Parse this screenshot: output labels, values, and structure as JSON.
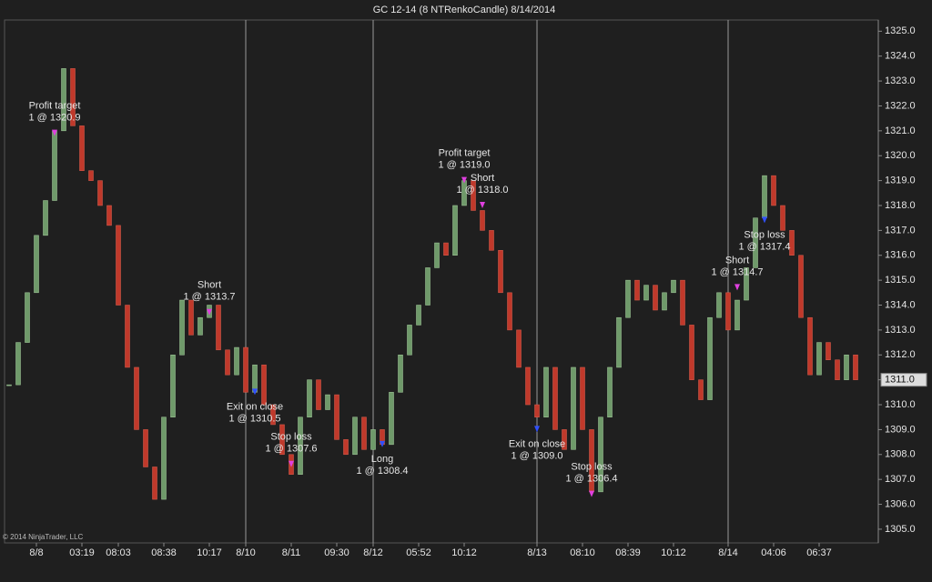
{
  "chart_data": {
    "type": "renko",
    "title": "GC 12-14 (8 NTRenkoCandle)  8/14/2014",
    "copyright": "© 2014 NinjaTrader, LLC",
    "last_price_label": "1311.0",
    "up_color": "#6f9a6a",
    "down_color": "#c0392b",
    "ylim": [
      1304.45,
      1325.45
    ],
    "yticks": [
      {
        "value": 1305,
        "label": "1305.0"
      },
      {
        "value": 1306,
        "label": "1306.0"
      },
      {
        "value": 1307,
        "label": "1307.0"
      },
      {
        "value": 1308,
        "label": "1308.0"
      },
      {
        "value": 1309,
        "label": "1309.0"
      },
      {
        "value": 1310,
        "label": "1310.0"
      },
      {
        "value": 1311,
        "label": "1311.0"
      },
      {
        "value": 1312,
        "label": "1312.0"
      },
      {
        "value": 1313,
        "label": "1313.0"
      },
      {
        "value": 1314,
        "label": "1314.0"
      },
      {
        "value": 1315,
        "label": "1315.0"
      },
      {
        "value": 1316,
        "label": "1316.0"
      },
      {
        "value": 1317,
        "label": "1317.0"
      },
      {
        "value": 1318,
        "label": "1318.0"
      },
      {
        "value": 1319,
        "label": "1319.0"
      },
      {
        "value": 1320,
        "label": "1320.0"
      },
      {
        "value": 1321,
        "label": "1321.0"
      },
      {
        "value": 1322,
        "label": "1322.0"
      },
      {
        "value": 1323,
        "label": "1323.0"
      },
      {
        "value": 1324,
        "label": "1324.0"
      },
      {
        "value": 1325,
        "label": "1325.0"
      }
    ],
    "categories": [
      null,
      null,
      null,
      "8/8",
      null,
      null,
      null,
      null,
      "03:19",
      null,
      null,
      null,
      "08:03",
      null,
      null,
      null,
      null,
      "08:38",
      null,
      null,
      null,
      null,
      "10:17",
      null,
      null,
      null,
      "8/10",
      null,
      null,
      null,
      null,
      "8/11",
      null,
      null,
      null,
      null,
      "09:30",
      null,
      null,
      null,
      "8/12",
      null,
      null,
      null,
      null,
      "05:52",
      null,
      null,
      null,
      null,
      "10:12",
      null,
      null,
      null,
      null,
      null,
      null,
      null,
      "8/13",
      null,
      null,
      null,
      null,
      "08:10",
      null,
      null,
      null,
      null,
      "08:39",
      null,
      null,
      null,
      null,
      "10:12",
      null,
      null,
      null,
      null,
      null,
      "8/14",
      null,
      null,
      null,
      null,
      "04:06",
      null,
      null,
      null,
      null,
      "06:37",
      null,
      null,
      null,
      null
    ],
    "session_breaks": [
      26,
      40,
      58,
      79
    ],
    "closes": [
      1310.8,
      1312.5,
      1314.5,
      1316.8,
      1318.2,
      1321.0,
      1323.5,
      1321.2,
      1319.4,
      1319.0,
      1318.0,
      1317.2,
      1314.0,
      1311.5,
      1309.0,
      1307.5,
      1306.2,
      1309.5,
      1312.0,
      1314.2,
      1312.8,
      1313.5,
      1314.0,
      1312.2,
      1311.2,
      1312.3,
      1310.5,
      1311.6,
      1310.0,
      1309.2,
      1308.0,
      1307.2,
      1309.5,
      1311.0,
      1309.8,
      1310.4,
      1308.6,
      1308.0,
      1309.5,
      1308.2,
      1309.0,
      1308.4,
      1310.5,
      1312.0,
      1313.2,
      1314.0,
      1315.5,
      1316.5,
      1316.0,
      1318.0,
      1319.0,
      1317.8,
      1317.0,
      1316.2,
      1314.5,
      1313.0,
      1311.5,
      1310.0,
      1309.5,
      1311.5,
      1309.0,
      1308.2,
      1311.5,
      1309.0,
      1306.5,
      1309.5,
      1311.5,
      1313.5,
      1315.0,
      1314.2,
      1314.8,
      1313.8,
      1314.5,
      1315.0,
      1313.2,
      1311.0,
      1310.2,
      1313.5,
      1314.5,
      1313.0,
      1314.2,
      1315.5,
      1317.5,
      1319.2,
      1318.0,
      1317.0,
      1316.0,
      1313.5,
      1311.2,
      1312.5,
      1311.8,
      1311.0,
      1312.0,
      1311.0
    ],
    "trades": [
      {
        "label": "Profit target",
        "detail": "1 @ 1320.9",
        "index": 5,
        "price": 1320.9,
        "side": "above",
        "color": "#e040e0"
      },
      {
        "label": "Short",
        "detail": "1 @ 1313.7",
        "index": 22,
        "price": 1313.7,
        "side": "above",
        "color": "#e040e0"
      },
      {
        "label": "Exit on close",
        "detail": "1 @ 1310.5",
        "index": 27,
        "price": 1310.5,
        "side": "below",
        "color": "#3050ff"
      },
      {
        "label": "Stop loss",
        "detail": "1 @ 1307.6",
        "index": 31,
        "price": 1307.6,
        "side": "above",
        "color": "#e040e0"
      },
      {
        "label": "Long",
        "detail": "1 @ 1308.4",
        "index": 41,
        "price": 1308.4,
        "side": "below",
        "color": "#3050ff"
      },
      {
        "label": "Profit target",
        "detail": "1 @ 1319.0",
        "index": 50,
        "price": 1319.0,
        "side": "above",
        "color": "#e040e0"
      },
      {
        "label": "Short",
        "detail": "1 @ 1318.0",
        "index": 52,
        "price": 1318.0,
        "side": "above",
        "color": "#e040e0"
      },
      {
        "label": "Exit on close",
        "detail": "1 @ 1309.0",
        "index": 58,
        "price": 1309.0,
        "side": "below",
        "color": "#3050ff"
      },
      {
        "label": "Stop loss",
        "detail": "1 @ 1306.4",
        "index": 64,
        "price": 1306.4,
        "side": "above",
        "color": "#e040e0"
      },
      {
        "label": "Short",
        "detail": "1 @ 1314.7",
        "index": 80,
        "price": 1314.7,
        "side": "above",
        "color": "#e040e0"
      },
      {
        "label": "Stop loss",
        "detail": "1 @ 1317.4",
        "index": 83,
        "price": 1317.4,
        "side": "below",
        "color": "#3050ff"
      }
    ]
  }
}
